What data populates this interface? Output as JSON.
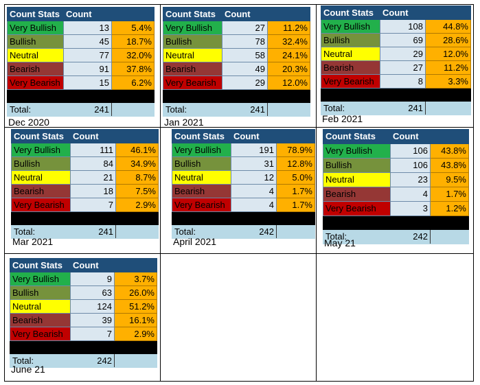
{
  "header_labels": [
    "Count Stats",
    "Count"
  ],
  "categories": [
    "Very Bullish",
    "Bullish",
    "Neutral",
    "Bearish",
    "Very Bearish"
  ],
  "total_label": "Total:",
  "colors": {
    "header": "#1f4e79",
    "very_bullish": "#22b04b",
    "bullish": "#76923c",
    "neutral": "#ffff00",
    "bearish": "#953735",
    "very_bearish": "#c00000",
    "percent": "#ffb000",
    "count": "#dbe7f0",
    "total": "#b8d9e6"
  },
  "tables": [
    {
      "caption": "Dec 2020",
      "rows": [
        {
          "count": "13",
          "pct": "5.4%"
        },
        {
          "count": "45",
          "pct": "18.7%"
        },
        {
          "count": "77",
          "pct": "32.0%"
        },
        {
          "count": "91",
          "pct": "37.8%"
        },
        {
          "count": "15",
          "pct": "6.2%"
        }
      ],
      "total": "241"
    },
    {
      "caption": "Jan 2021",
      "rows": [
        {
          "count": "27",
          "pct": "11.2%"
        },
        {
          "count": "78",
          "pct": "32.4%"
        },
        {
          "count": "58",
          "pct": "24.1%"
        },
        {
          "count": "49",
          "pct": "20.3%"
        },
        {
          "count": "29",
          "pct": "12.0%"
        }
      ],
      "total": "241"
    },
    {
      "caption": "Feb 2021",
      "rows": [
        {
          "count": "108",
          "pct": "44.8%"
        },
        {
          "count": "69",
          "pct": "28.6%"
        },
        {
          "count": "29",
          "pct": "12.0%"
        },
        {
          "count": "27",
          "pct": "11.2%"
        },
        {
          "count": "8",
          "pct": "3.3%"
        }
      ],
      "total": "241"
    },
    {
      "caption": "Mar 2021",
      "rows": [
        {
          "count": "111",
          "pct": "46.1%"
        },
        {
          "count": "84",
          "pct": "34.9%"
        },
        {
          "count": "21",
          "pct": "8.7%"
        },
        {
          "count": "18",
          "pct": "7.5%"
        },
        {
          "count": "7",
          "pct": "2.9%"
        }
      ],
      "total": "241"
    },
    {
      "caption": "April 2021",
      "rows": [
        {
          "count": "191",
          "pct": "78.9%"
        },
        {
          "count": "31",
          "pct": "12.8%"
        },
        {
          "count": "12",
          "pct": "5.0%"
        },
        {
          "count": "4",
          "pct": "1.7%"
        },
        {
          "count": "4",
          "pct": "1.7%"
        }
      ],
      "total": "242"
    },
    {
      "caption": "May 21",
      "rows": [
        {
          "count": "106",
          "pct": "43.8%"
        },
        {
          "count": "106",
          "pct": "43.8%"
        },
        {
          "count": "23",
          "pct": "9.5%"
        },
        {
          "count": "4",
          "pct": "1.7%"
        },
        {
          "count": "3",
          "pct": "1.2%"
        }
      ],
      "total": "242"
    },
    {
      "caption": "June 21",
      "rows": [
        {
          "count": "9",
          "pct": "3.7%"
        },
        {
          "count": "63",
          "pct": "26.0%"
        },
        {
          "count": "124",
          "pct": "51.2%"
        },
        {
          "count": "39",
          "pct": "16.1%"
        },
        {
          "count": "7",
          "pct": "2.9%"
        }
      ],
      "total": "242"
    }
  ]
}
